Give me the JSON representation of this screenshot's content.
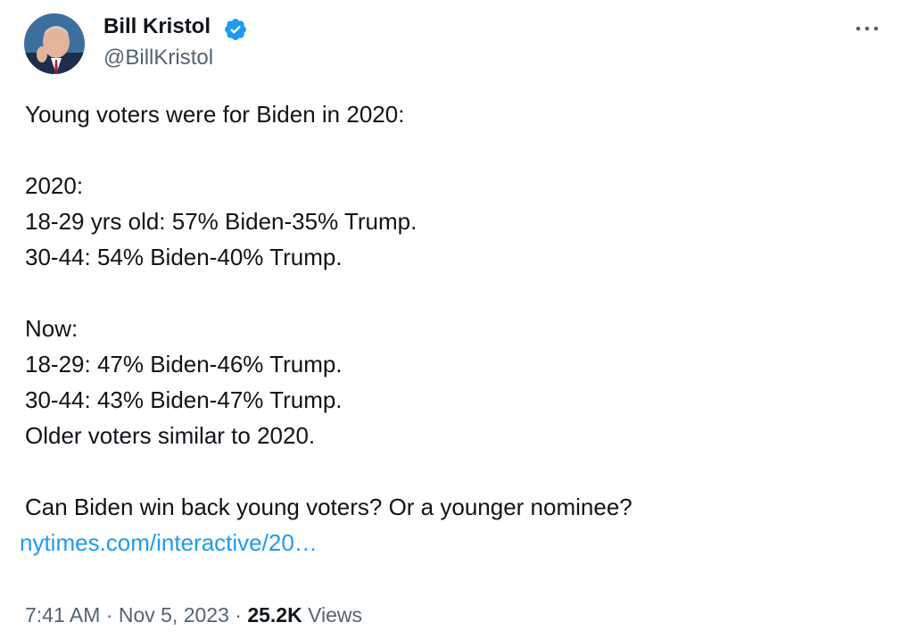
{
  "header": {
    "name": "Bill Kristol",
    "handle": "@BillKristol"
  },
  "body": {
    "paragraphs": [
      [
        "Young voters were for Biden in 2020:"
      ],
      [
        "2020:",
        "18-29 yrs old: 57% Biden-35% Trump.",
        "30-44: 54% Biden-40% Trump."
      ],
      [
        "Now:",
        "18-29: 47% Biden-46% Trump.",
        "30-44: 43% Biden-47% Trump.",
        "Older voters similar to 2020."
      ],
      [
        "Can Biden win back young voters? Or a younger nominee?"
      ]
    ],
    "link": "nytimes.com/interactive/20…"
  },
  "footer": {
    "time": "7:41 AM",
    "separator": "·",
    "date": "Nov 5, 2023",
    "views_count": "25.2K",
    "views_label": "Views"
  }
}
